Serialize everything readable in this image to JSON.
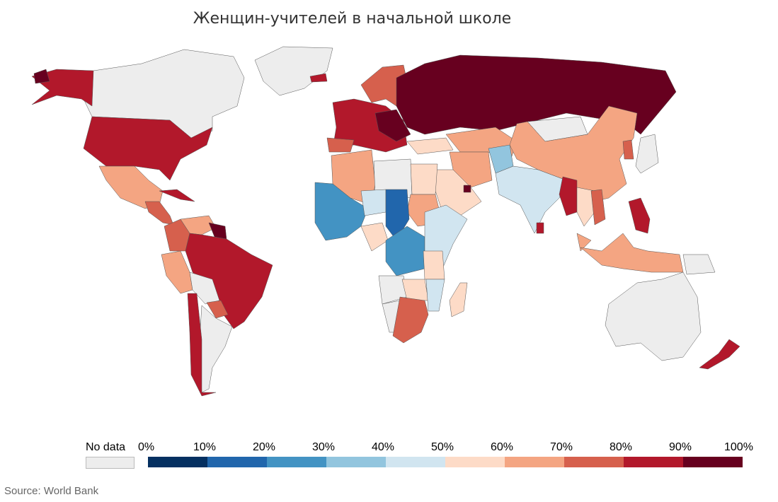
{
  "title": "Женщин-учителей в начальной школе",
  "legend": {
    "no_data_label": "No data",
    "no_data_color": "#ededed",
    "ticks": [
      "0%",
      "10%",
      "20%",
      "30%",
      "40%",
      "50%",
      "60%",
      "70%",
      "80%",
      "90%",
      "100%"
    ],
    "bins": [
      "#053061",
      "#2166ac",
      "#4393c3",
      "#92c5de",
      "#d1e5f0",
      "#fddbc7",
      "#f4a582",
      "#d6604d",
      "#b2182b",
      "#67001f"
    ]
  },
  "source": "Source: World Bank"
}
